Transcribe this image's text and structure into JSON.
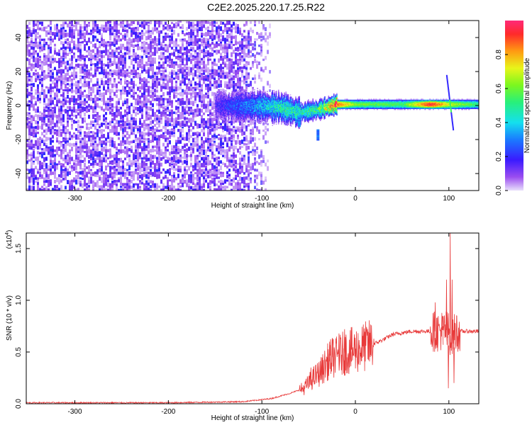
{
  "title": "C2E2.2025.220.17.25.R22",
  "colors": {
    "snr_line": "#e83a3a",
    "axis": "#000000"
  },
  "chart_data": [
    {
      "type": "heatmap",
      "xlabel": "Height of straight line (km)",
      "ylabel": "Frequency (Hz)",
      "xlim": [
        -352,
        132
      ],
      "ylim": [
        -50,
        50
      ],
      "xticks": [
        -300,
        -200,
        -100,
        0,
        100
      ],
      "yticks": [
        -40,
        -20,
        0,
        20,
        40
      ],
      "colorbar": {
        "label": "Normalized spectral amplitude",
        "range": [
          0,
          1
        ],
        "ticks": [
          "0.0",
          "0.2",
          "0.4",
          "0.6",
          "0.8"
        ],
        "colormap": "rainbow (violet=0 to red/magenta=1)"
      },
      "features": {
        "noise_region_x": [
          -352,
          -100
        ],
        "signal_trace": [
          {
            "x": -150,
            "y": 0,
            "amp": 0.15
          },
          {
            "x": -100,
            "y": 0,
            "amp": 0.35
          },
          {
            "x": -80,
            "y": -1,
            "amp": 0.45
          },
          {
            "x": -60,
            "y": -4,
            "amp": 0.45
          },
          {
            "x": -40,
            "y": -2,
            "amp": 0.5
          },
          {
            "x": -20,
            "y": 1,
            "amp": 0.9
          },
          {
            "x": 0,
            "y": 1,
            "amp": 0.6
          },
          {
            "x": 50,
            "y": 1,
            "amp": 0.55
          },
          {
            "x": 80,
            "y": 1,
            "amp": 0.95
          },
          {
            "x": 100,
            "y": 1,
            "amp": 0.7
          },
          {
            "x": 132,
            "y": 1,
            "amp": 0.5
          }
        ]
      }
    },
    {
      "type": "line",
      "xlabel": "Height of straight line (km)",
      "ylabel": "SNR (10 * v/v)",
      "yscale_label": "(x10",
      "yscale_exp": "4",
      "yscale_close": ")",
      "xlim": [
        -352,
        132
      ],
      "ylim": [
        0,
        1.65
      ],
      "xticks": [
        -300,
        -200,
        -100,
        0,
        100
      ],
      "yticks": [
        "0.0",
        "0.5",
        "1.0",
        "1.5"
      ],
      "series": [
        {
          "x": [
            -352,
            -300,
            -200,
            -120,
            -90,
            -70,
            -55,
            -45,
            -38,
            -30,
            -25,
            -20,
            -10,
            0,
            10,
            20,
            30,
            40,
            60,
            80,
            90,
            95,
            100,
            102,
            105,
            110,
            120,
            132
          ],
          "y": [
            0.01,
            0.01,
            0.01,
            0.02,
            0.05,
            0.1,
            0.15,
            0.25,
            0.3,
            0.4,
            0.45,
            0.45,
            0.5,
            0.52,
            0.55,
            0.58,
            0.62,
            0.67,
            0.7,
            0.7,
            0.7,
            0.72,
            0.7,
            0.65,
            0.68,
            0.7,
            0.7,
            0.7
          ],
          "spikes": [
            {
              "x": -48,
              "y": 0.35
            },
            {
              "x": -28,
              "y": 0.6
            },
            {
              "x": -25,
              "y": 0.62
            },
            {
              "x": -18,
              "y": 0.68
            },
            {
              "x": -12,
              "y": 0.72
            },
            {
              "x": -5,
              "y": 0.5
            },
            {
              "x": 15,
              "y": 0.6
            },
            {
              "x": 85,
              "y": 0.98
            },
            {
              "x": 93,
              "y": 0.75
            },
            {
              "x": 97,
              "y": 1.2
            },
            {
              "x": 99,
              "y": 0.15
            },
            {
              "x": 101,
              "y": 1.65
            },
            {
              "x": 103,
              "y": 1.2
            },
            {
              "x": 105,
              "y": 0.2
            },
            {
              "x": 108,
              "y": 0.85
            }
          ]
        }
      ]
    }
  ]
}
